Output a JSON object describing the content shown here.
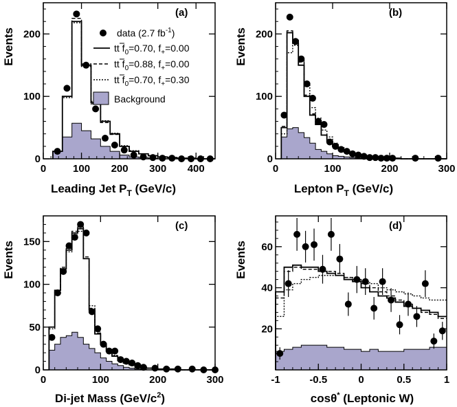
{
  "chart_data": [
    {
      "panel_label": "(a)",
      "type": "histogram",
      "xlabel": "Leading Jet P",
      "xlabel_sub": "T",
      "xlabel_unit": " (GeV/c)",
      "ylabel": "Events",
      "xlim": [
        0,
        450
      ],
      "ylim": [
        0,
        250
      ],
      "xticks": [
        0,
        100,
        200,
        300,
        400
      ],
      "yticks": [
        0,
        100,
        200
      ],
      "bin_edges": [
        25,
        50,
        75,
        100,
        125,
        150,
        175,
        200,
        225,
        250,
        275,
        300,
        325,
        350,
        375,
        400,
        425,
        450
      ],
      "background": [
        12,
        35,
        57,
        45,
        32,
        20,
        12,
        6,
        3,
        2,
        1,
        0,
        0,
        0,
        0,
        0,
        0
      ],
      "series": [
        {
          "name": "tt f0=0.70, f+=0.00",
          "style": "solid",
          "values": [
            12,
            100,
            220,
            150,
            90,
            60,
            40,
            20,
            12,
            8,
            5,
            3,
            2,
            1,
            1,
            0,
            0
          ]
        },
        {
          "name": "tt f0=0.88, f+=0.00",
          "style": "dashed",
          "values": [
            12,
            100,
            225,
            148,
            88,
            58,
            39,
            20,
            12,
            8,
            5,
            3,
            2,
            1,
            1,
            0,
            0
          ]
        },
        {
          "name": "tt f0=0.70, f+=0.30",
          "style": "dotted",
          "values": [
            12,
            98,
            218,
            152,
            92,
            61,
            41,
            21,
            13,
            8,
            5,
            3,
            2,
            1,
            1,
            0,
            0
          ]
        }
      ],
      "data_points": {
        "name": "data (2.7 fb-1)",
        "x": [
          37,
          62,
          87,
          112,
          137,
          162,
          187,
          212,
          237,
          262,
          287,
          312,
          337,
          362,
          387,
          412,
          437
        ],
        "y": [
          12,
          113,
          232,
          150,
          80,
          33,
          22,
          14,
          6,
          3,
          2,
          1,
          1,
          0,
          0,
          0,
          0
        ],
        "err": []
      },
      "legend": {
        "data_label": "data (2.7 fb",
        "data_sup": "-1",
        "data_tail": ")",
        "entries": [
          {
            "prefix": "t",
            "text": "f",
            "sub": "0",
            "value": "=0.70, f",
            "sub2": "+",
            "tail": "=0.00",
            "style": "solid"
          },
          {
            "prefix": "t",
            "text": "f",
            "sub": "0",
            "value": "=0.88, f",
            "sub2": "+",
            "tail": "=0.00",
            "style": "dashed"
          },
          {
            "prefix": "t",
            "text": "f",
            "sub": "0",
            "value": "=0.70, f",
            "sub2": "+",
            "tail": "=0.30",
            "style": "dotted"
          }
        ],
        "bg_label": "Background"
      }
    },
    {
      "panel_label": "(b)",
      "type": "histogram",
      "xlabel": "Lepton P",
      "xlabel_sub": "T",
      "xlabel_unit": " (GeV/c)",
      "ylabel": "Events",
      "xlim": [
        0,
        300
      ],
      "ylim": [
        0,
        250
      ],
      "xticks": [
        0,
        100,
        200,
        300
      ],
      "yticks": [
        0,
        100,
        200
      ],
      "bin_edges": [
        10,
        20,
        30,
        40,
        50,
        60,
        70,
        80,
        90,
        100,
        110,
        120,
        130,
        140,
        150,
        160,
        170,
        180,
        190,
        200,
        210,
        220,
        230,
        240,
        250,
        260,
        270,
        280,
        290,
        300
      ],
      "background": [
        35,
        48,
        50,
        42,
        34,
        25,
        15,
        12,
        8,
        5,
        4,
        3,
        2,
        1,
        1,
        1,
        0,
        0,
        0,
        0,
        0,
        0,
        0,
        0,
        0,
        0,
        0,
        0,
        0
      ],
      "series": [
        {
          "name": "tt f0=0.70, f+=0.00",
          "style": "solid",
          "values": [
            50,
            202,
            185,
            150,
            100,
            70,
            55,
            38,
            28,
            20,
            15,
            11,
            8,
            6,
            4,
            3,
            2,
            2,
            1,
            1,
            1,
            0,
            0,
            0,
            0,
            0,
            0,
            0,
            0
          ]
        },
        {
          "name": "tt f0=0.88, f+=0.00",
          "style": "dashed",
          "values": [
            52,
            205,
            190,
            155,
            102,
            72,
            56,
            38,
            28,
            20,
            15,
            11,
            8,
            6,
            4,
            3,
            2,
            2,
            1,
            1,
            1,
            0,
            0,
            0,
            0,
            0,
            0,
            0,
            0
          ]
        },
        {
          "name": "tt f0=0.70, f+=0.30",
          "style": "dotted",
          "values": [
            40,
            170,
            182,
            160,
            120,
            82,
            65,
            46,
            35,
            25,
            18,
            13,
            9,
            7,
            5,
            4,
            3,
            2,
            1,
            1,
            1,
            0,
            0,
            0,
            0,
            0,
            0,
            0,
            0
          ]
        }
      ],
      "data_points": {
        "x": [
          15,
          25,
          35,
          45,
          55,
          65,
          75,
          85,
          95,
          105,
          115,
          125,
          135,
          145,
          155,
          165,
          175,
          185,
          195,
          205,
          245,
          285
        ],
        "y": [
          70,
          227,
          188,
          160,
          120,
          97,
          60,
          55,
          27,
          20,
          15,
          12,
          8,
          6,
          4,
          2,
          2,
          1,
          1,
          1,
          1,
          1
        ],
        "err": []
      }
    },
    {
      "panel_label": "(c)",
      "type": "histogram",
      "xlabel": "Di-jet Mass",
      "xlabel_unit": " (GeV/c",
      "xlabel_sup": "2",
      "xlabel_tail": ")",
      "ylabel": "Events",
      "xlim": [
        0,
        300
      ],
      "ylim": [
        0,
        180
      ],
      "xticks": [
        0,
        100,
        200,
        300
      ],
      "yticks": [
        0,
        50,
        100,
        150
      ],
      "bin_edges": [
        10,
        20,
        30,
        40,
        50,
        60,
        70,
        80,
        90,
        100,
        110,
        120,
        130,
        140,
        150,
        160,
        170,
        180,
        190,
        200,
        210,
        220,
        230,
        240,
        250,
        260,
        270,
        280,
        290,
        300
      ],
      "background": [
        23,
        30,
        38,
        40,
        44,
        38,
        30,
        25,
        20,
        14,
        10,
        7,
        5,
        3,
        2,
        1,
        0,
        0,
        0,
        0,
        0,
        0,
        0,
        0,
        0,
        0,
        0,
        0,
        0
      ],
      "series": [
        {
          "name": "tt f0=0.70, f+=0.00",
          "style": "solid",
          "values": [
            50,
            93,
            118,
            140,
            160,
            165,
            130,
            70,
            42,
            30,
            22,
            16,
            11,
            8,
            6,
            4,
            3,
            2,
            2,
            1,
            1,
            1,
            0,
            0,
            0,
            0,
            0,
            0,
            0
          ]
        },
        {
          "name": "tt f0=0.88, f+=0.00",
          "style": "dashed",
          "values": [
            50,
            93,
            120,
            142,
            162,
            167,
            132,
            72,
            43,
            31,
            22,
            16,
            11,
            8,
            6,
            4,
            3,
            2,
            2,
            1,
            1,
            1,
            0,
            0,
            0,
            0,
            0,
            0,
            0
          ]
        },
        {
          "name": "tt f0=0.70, f+=0.30",
          "style": "dotted",
          "values": [
            48,
            90,
            115,
            138,
            158,
            162,
            130,
            75,
            45,
            32,
            23,
            17,
            11,
            8,
            6,
            4,
            3,
            2,
            2,
            1,
            1,
            1,
            0,
            0,
            0,
            0,
            0,
            0,
            0
          ]
        }
      ],
      "data_points": {
        "x": [
          15,
          25,
          35,
          45,
          55,
          65,
          75,
          85,
          95,
          105,
          115,
          125,
          135,
          145,
          155,
          165,
          175,
          195,
          215,
          235,
          260,
          280,
          300
        ],
        "y": [
          38,
          90,
          115,
          145,
          155,
          170,
          160,
          68,
          48,
          30,
          22,
          22,
          12,
          10,
          8,
          5,
          3,
          2,
          1,
          1,
          1,
          0,
          0
        ],
        "err": []
      }
    },
    {
      "panel_label": "(d)",
      "type": "histogram",
      "xlabel": "cos",
      "xlabel_theta": "θ",
      "xlabel_sup": "*",
      "xlabel_unit": " (Leptonic W)",
      "ylabel": "Events",
      "xlim": [
        -1,
        1
      ],
      "ylim": [
        0,
        75
      ],
      "xticks": [
        -1,
        -0.5,
        0,
        0.5,
        1
      ],
      "xtick_labels": [
        "-1",
        "-0.5",
        "0",
        "0.5",
        "1"
      ],
      "yticks": [
        20,
        40,
        60
      ],
      "bin_edges": [
        -1,
        -0.9,
        -0.8,
        -0.7,
        -0.6,
        -0.5,
        -0.4,
        -0.3,
        -0.2,
        -0.1,
        0,
        0.1,
        0.2,
        0.3,
        0.4,
        0.5,
        0.6,
        0.7,
        0.8,
        0.9,
        1
      ],
      "background": [
        9,
        10,
        11,
        12,
        12,
        12,
        11,
        11,
        10,
        10,
        9,
        10,
        9,
        9,
        9,
        10,
        10,
        10,
        11,
        11
      ],
      "series": [
        {
          "name": "tt f0=0.70, f+=0.00",
          "style": "solid",
          "values": [
            38,
            50,
            51,
            50,
            50,
            48,
            47,
            46,
            44,
            43,
            40,
            38,
            36,
            35,
            33,
            31,
            30,
            29,
            28,
            26
          ]
        },
        {
          "name": "tt f0=0.88, f+=0.00",
          "style": "dashed",
          "values": [
            35,
            48,
            50,
            49,
            49,
            48,
            48,
            47,
            45,
            44,
            42,
            40,
            38,
            36,
            34,
            32,
            30,
            28,
            27,
            25
          ]
        },
        {
          "name": "tt f0=0.70, f+=0.30",
          "style": "dotted",
          "values": [
            26,
            39,
            42,
            44,
            45,
            46,
            46,
            46,
            45,
            44,
            43,
            42,
            40,
            39,
            38,
            37,
            36,
            35,
            34,
            34
          ]
        }
      ],
      "data_points": {
        "x": [
          -0.95,
          -0.85,
          -0.75,
          -0.65,
          -0.55,
          -0.45,
          -0.35,
          -0.25,
          -0.15,
          -0.05,
          0.05,
          0.15,
          0.25,
          0.35,
          0.45,
          0.55,
          0.65,
          0.75,
          0.85,
          0.95
        ],
        "y": [
          8,
          42,
          66,
          60,
          61,
          49,
          66,
          54,
          32,
          44,
          43,
          30,
          43,
          34,
          22,
          32,
          26,
          42,
          14,
          19
        ],
        "err": [
          3,
          6.5,
          8,
          7.7,
          7.8,
          7,
          8,
          7.3,
          5.7,
          6.6,
          6.5,
          5.5,
          6.5,
          5.8,
          4.7,
          5.7,
          5.1,
          6.5,
          3.7,
          4.4
        ]
      }
    }
  ]
}
